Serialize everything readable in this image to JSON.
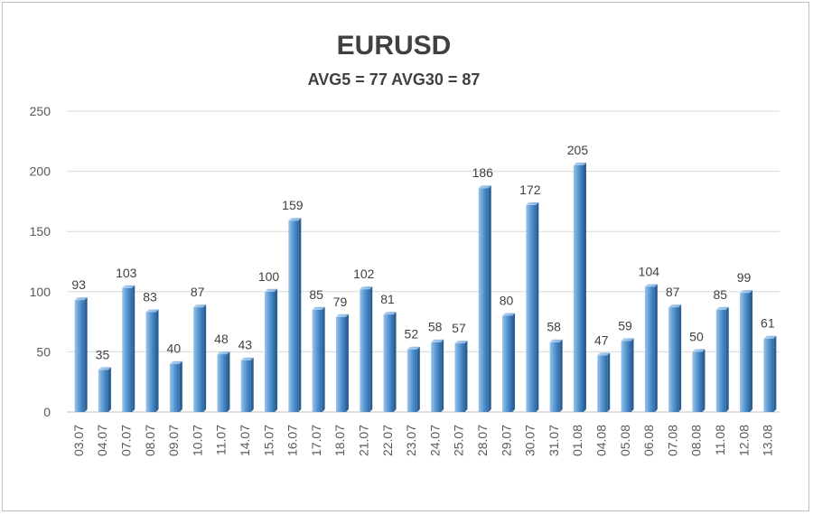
{
  "chart_data": {
    "type": "bar",
    "title": "EURUSD",
    "subtitle": "AVG5 = 77 AVG30 = 87",
    "xlabel": "",
    "ylabel": "",
    "ylim": [
      0,
      250
    ],
    "yticks": [
      0,
      50,
      100,
      150,
      200,
      250
    ],
    "grid": true,
    "legend": "none",
    "bar_color": "#5b9bd5",
    "categories": [
      "03.07",
      "04.07",
      "07.07",
      "08.07",
      "09.07",
      "10.07",
      "11.07",
      "14.07",
      "15.07",
      "16.07",
      "17.07",
      "18.07",
      "21.07",
      "22.07",
      "23.07",
      "24.07",
      "25.07",
      "28.07",
      "29.07",
      "30.07",
      "31.07",
      "01.08",
      "04.08",
      "05.08",
      "06.08",
      "07.08",
      "08.08",
      "11.08",
      "12.08",
      "13.08"
    ],
    "values": [
      93,
      35,
      103,
      83,
      40,
      87,
      48,
      43,
      100,
      159,
      85,
      79,
      102,
      81,
      52,
      58,
      57,
      186,
      80,
      172,
      58,
      205,
      47,
      59,
      104,
      87,
      50,
      85,
      99,
      61
    ]
  }
}
